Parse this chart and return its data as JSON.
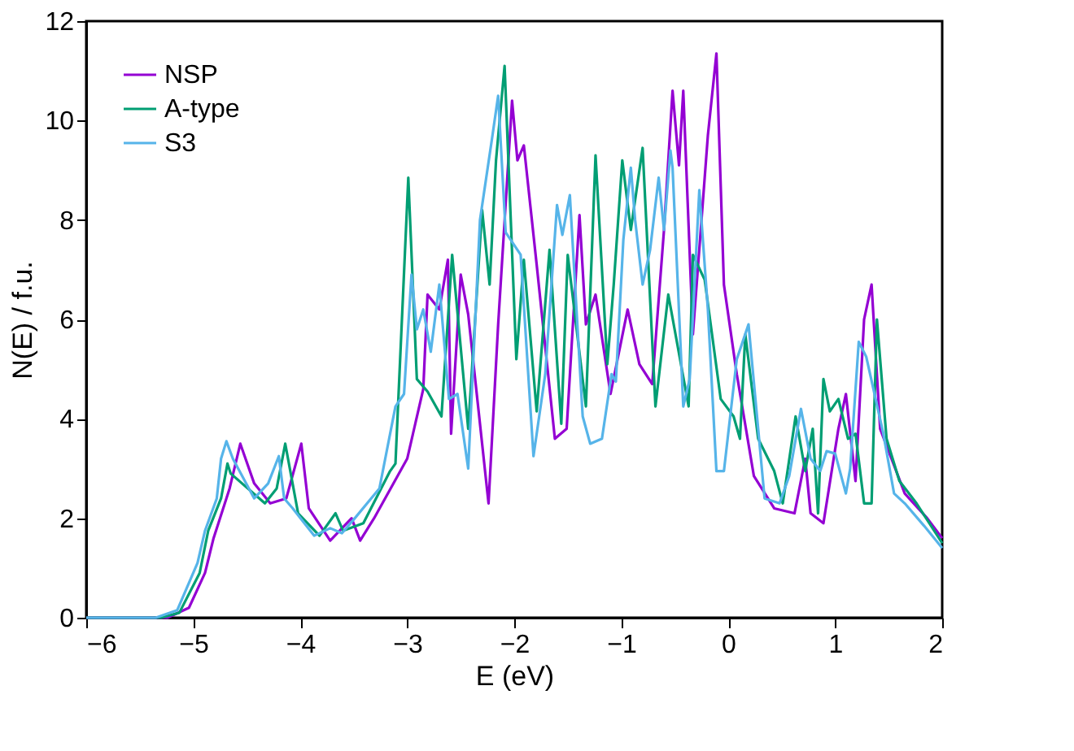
{
  "chart_data": {
    "type": "line",
    "xlabel": "E (eV)",
    "ylabel": "N(E) / f.u.",
    "xlim": [
      -6,
      2
    ],
    "ylim": [
      0,
      12
    ],
    "xticks": [
      -6,
      -5,
      -4,
      -3,
      -2,
      -1,
      0,
      1,
      2
    ],
    "yticks": [
      0,
      2,
      4,
      6,
      8,
      10,
      12
    ],
    "grid": false,
    "legend": "top left",
    "line_style": "solid",
    "marker": "none",
    "series": [
      {
        "name": "NSP",
        "color": "#9400d3",
        "x": [
          -6,
          -5.24,
          -5.04,
          -4.89,
          -4.81,
          -4.66,
          -4.56,
          -4.43,
          -4.28,
          -4.13,
          -3.99,
          -3.92,
          -3.72,
          -3.52,
          -3.44,
          -3.31,
          -3.0,
          -2.85,
          -2.81,
          -2.7,
          -2.62,
          -2.59,
          -2.5,
          -2.43,
          -2.24,
          -2.15,
          -2.02,
          -1.97,
          -1.91,
          -1.79,
          -1.62,
          -1.51,
          -1.39,
          -1.33,
          -1.24,
          -1.1,
          -0.94,
          -0.83,
          -0.71,
          -0.6,
          -0.52,
          -0.46,
          -0.42,
          -0.33,
          -0.19,
          -0.11,
          -0.04,
          0.08,
          0.24,
          0.43,
          0.62,
          0.72,
          0.77,
          0.89,
          1.03,
          1.1,
          1.19,
          1.27,
          1.34,
          1.42,
          1.65,
          1.86,
          2.0
        ],
        "values": [
          0,
          0,
          0.2,
          0.9,
          1.6,
          2.6,
          3.5,
          2.7,
          2.3,
          2.4,
          3.5,
          2.2,
          1.55,
          2.0,
          1.55,
          2.0,
          3.2,
          4.6,
          6.5,
          6.2,
          7.2,
          3.7,
          6.9,
          6.1,
          2.3,
          5.9,
          10.4,
          9.2,
          9.5,
          7.1,
          3.6,
          3.8,
          8.1,
          5.9,
          6.5,
          4.5,
          6.2,
          5.1,
          4.7,
          7.8,
          10.6,
          9.1,
          10.6,
          5.7,
          9.7,
          11.35,
          6.7,
          4.9,
          2.85,
          2.2,
          2.1,
          3.2,
          2.1,
          1.9,
          3.8,
          4.5,
          2.75,
          6.0,
          6.7,
          3.8,
          2.5,
          2.0,
          1.6
        ]
      },
      {
        "name": "A-type",
        "color": "#009e73",
        "x": [
          -6,
          -5.3,
          -5.13,
          -4.94,
          -4.86,
          -4.74,
          -4.68,
          -4.65,
          -4.33,
          -4.22,
          -4.14,
          -4.02,
          -3.82,
          -3.67,
          -3.6,
          -3.41,
          -3.16,
          -3.11,
          -2.99,
          -2.91,
          -2.81,
          -2.68,
          -2.58,
          -2.43,
          -2.3,
          -2.23,
          -2.17,
          -2.09,
          -1.98,
          -1.91,
          -1.79,
          -1.67,
          -1.56,
          -1.5,
          -1.33,
          -1.24,
          -1.13,
          -1.07,
          -0.99,
          -0.91,
          -0.8,
          -0.68,
          -0.56,
          -0.37,
          -0.33,
          -0.22,
          -0.07,
          0.05,
          0.11,
          0.16,
          0.28,
          0.43,
          0.51,
          0.63,
          0.72,
          0.79,
          0.84,
          0.89,
          0.95,
          1.03,
          1.12,
          1.19,
          1.27,
          1.34,
          1.39,
          1.48,
          1.6,
          1.76,
          2.0
        ],
        "values": [
          0,
          0,
          0.1,
          0.9,
          1.75,
          2.4,
          3.1,
          2.9,
          2.3,
          2.6,
          3.5,
          2.1,
          1.65,
          2.1,
          1.75,
          1.9,
          2.95,
          3.1,
          8.85,
          4.8,
          4.55,
          4.05,
          7.3,
          3.8,
          8.2,
          6.7,
          9.2,
          11.1,
          5.2,
          7.2,
          4.15,
          7.4,
          3.9,
          7.3,
          4.25,
          9.3,
          5.1,
          6.7,
          9.2,
          7.8,
          9.45,
          4.25,
          6.5,
          4.25,
          7.3,
          6.8,
          4.4,
          4.05,
          3.6,
          5.7,
          3.6,
          2.95,
          2.3,
          4.05,
          2.95,
          3.8,
          2.1,
          4.8,
          4.15,
          4.4,
          3.6,
          3.7,
          2.3,
          2.3,
          6.0,
          3.6,
          2.75,
          2.3,
          1.5
        ]
      },
      {
        "name": "S3",
        "color": "#56b4e9",
        "x": [
          -6,
          -5.35,
          -5.15,
          -4.96,
          -4.89,
          -4.78,
          -4.74,
          -4.69,
          -4.63,
          -4.43,
          -4.3,
          -4.2,
          -4.15,
          -4.07,
          -3.87,
          -3.72,
          -3.61,
          -3.49,
          -3.26,
          -3.11,
          -3.03,
          -2.96,
          -2.91,
          -2.85,
          -2.78,
          -2.7,
          -2.61,
          -2.53,
          -2.43,
          -2.32,
          -2.21,
          -2.15,
          -2.08,
          -1.94,
          -1.82,
          -1.71,
          -1.6,
          -1.55,
          -1.48,
          -1.36,
          -1.29,
          -1.18,
          -1.09,
          -1.05,
          -0.98,
          -0.91,
          -0.87,
          -0.8,
          -0.73,
          -0.65,
          -0.6,
          -0.54,
          -0.52,
          -0.42,
          -0.36,
          -0.27,
          -0.19,
          -0.11,
          -0.04,
          0.08,
          0.19,
          0.34,
          0.48,
          0.57,
          0.68,
          0.77,
          0.86,
          0.92,
          1.0,
          1.1,
          1.14,
          1.22,
          1.29,
          1.45,
          1.55,
          1.65,
          1.83,
          2.0
        ],
        "values": [
          0,
          0,
          0.15,
          1.1,
          1.75,
          2.4,
          3.2,
          3.55,
          3.2,
          2.4,
          2.7,
          3.25,
          2.4,
          2.2,
          1.65,
          1.8,
          1.7,
          2.0,
          2.6,
          4.25,
          4.5,
          6.9,
          5.8,
          6.2,
          5.35,
          6.7,
          4.4,
          4.5,
          3.0,
          8.0,
          9.6,
          10.5,
          7.75,
          7.3,
          3.25,
          4.9,
          8.3,
          7.7,
          8.5,
          4.05,
          3.5,
          3.6,
          4.9,
          4.75,
          7.6,
          9.05,
          8.0,
          6.7,
          7.4,
          8.85,
          7.8,
          9.4,
          9.05,
          4.25,
          4.8,
          8.6,
          6.2,
          2.95,
          2.95,
          5.2,
          5.9,
          2.4,
          2.3,
          2.85,
          4.2,
          3.2,
          2.95,
          3.35,
          3.3,
          2.5,
          3.0,
          5.55,
          5.25,
          3.7,
          2.5,
          2.3,
          1.85,
          1.4
        ]
      }
    ]
  }
}
